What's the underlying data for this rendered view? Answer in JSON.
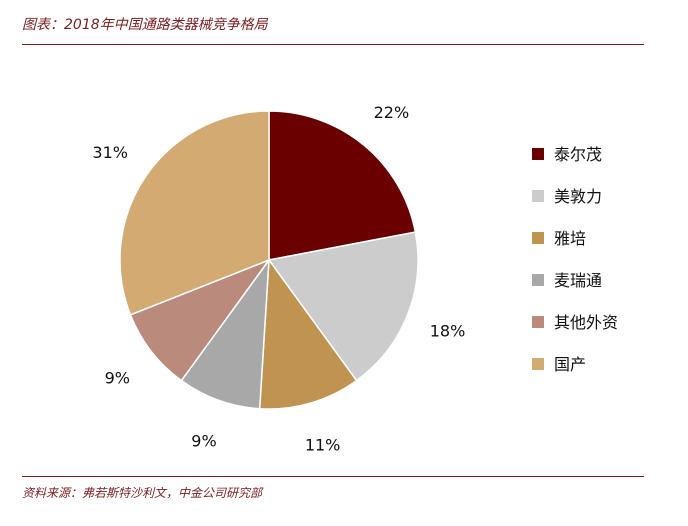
{
  "header": {
    "title": "图表：2018年中国通路类器械竞争格局"
  },
  "footer": {
    "source": "资料来源：弗若斯特沙利文，中金公司研究部"
  },
  "chart_data": {
    "type": "pie",
    "title": "",
    "slices": [
      {
        "name": "泰尔茂",
        "value": 22,
        "label": "22%",
        "color": "#6b0000"
      },
      {
        "name": "美敦力",
        "value": 18,
        "label": "18%",
        "color": "#cccccc"
      },
      {
        "name": "雅培",
        "value": 11,
        "label": "11%",
        "color": "#c09450"
      },
      {
        "name": "麦瑞通",
        "value": 9,
        "label": "9%",
        "color": "#a8a8a8"
      },
      {
        "name": "其他外资",
        "value": 9,
        "label": "9%",
        "color": "#ba8a7c"
      },
      {
        "name": "国产",
        "value": 31,
        "label": "31%",
        "color": "#d2aa72"
      }
    ],
    "legend": "right"
  }
}
